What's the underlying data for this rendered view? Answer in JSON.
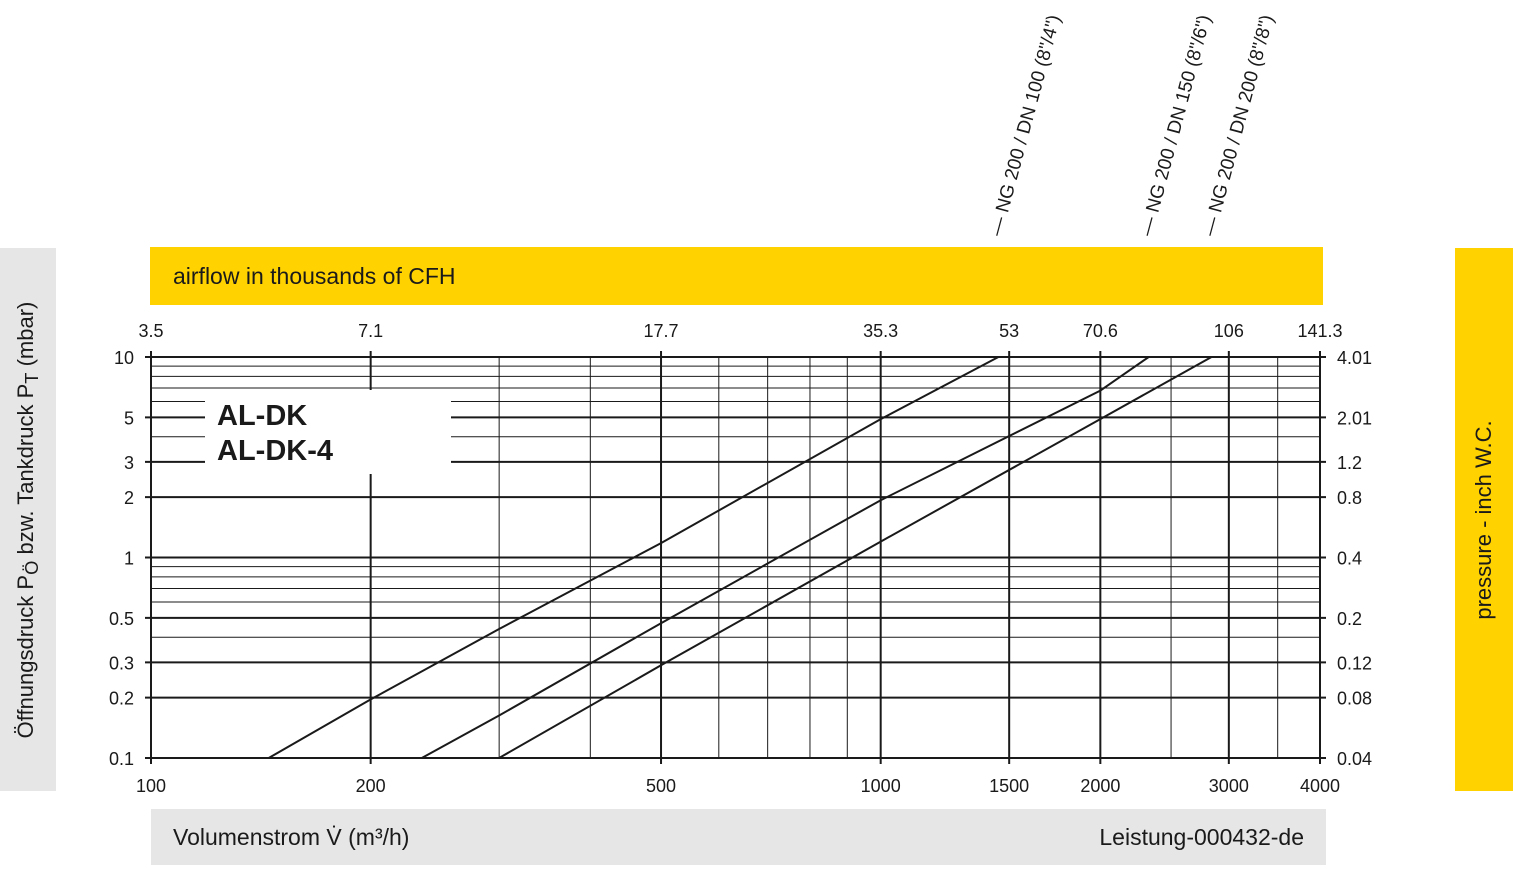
{
  "top_band": {
    "text": "airflow in thousands of CFH"
  },
  "bottom_band": {
    "xlabel": "Volumenstrom V̇ (m³/h)",
    "doc_id": "Leistung-000432-de"
  },
  "left_band": {
    "ylabel_main": "Öffnungsdruck P",
    "ylabel_sub1": "Ö",
    "ylabel_mid": " bzw. Tankdruck P",
    "ylabel_sub2": "T",
    "ylabel_end": " (mbar)"
  },
  "right_band": {
    "ylabel": "pressure  - inch W.C."
  },
  "colors": {
    "yellow": "#ffd200",
    "grey": "#e6e6e6",
    "ink": "#1a1a1a"
  },
  "chart_data": {
    "type": "line",
    "x_scale": "log",
    "y_scale": "log",
    "xlim": [
      100,
      4000
    ],
    "ylim": [
      0.1,
      10
    ],
    "x_ticks": [
      {
        "value": 100,
        "label": "100"
      },
      {
        "value": 200,
        "label": "200"
      },
      {
        "value": 500,
        "label": "500"
      },
      {
        "value": 1000,
        "label": "1000"
      },
      {
        "value": 1500,
        "label": "1500"
      },
      {
        "value": 2000,
        "label": "2000"
      },
      {
        "value": 3000,
        "label": "3000"
      },
      {
        "value": 4000,
        "label": "4000"
      }
    ],
    "x2_ticks": [
      {
        "value": 100,
        "label": "3.5"
      },
      {
        "value": 200,
        "label": "7.1"
      },
      {
        "value": 500,
        "label": "17.7"
      },
      {
        "value": 1000,
        "label": "35.3"
      },
      {
        "value": 1500,
        "label": "53"
      },
      {
        "value": 2000,
        "label": "70.6"
      },
      {
        "value": 3000,
        "label": "106"
      },
      {
        "value": 4000,
        "label": "141.3"
      }
    ],
    "y_ticks": [
      {
        "value": 0.1,
        "label": "0.1"
      },
      {
        "value": 0.2,
        "label": "0.2"
      },
      {
        "value": 0.3,
        "label": "0.3"
      },
      {
        "value": 0.5,
        "label": "0.5"
      },
      {
        "value": 1,
        "label": "1"
      },
      {
        "value": 2,
        "label": "2"
      },
      {
        "value": 3,
        "label": "3"
      },
      {
        "value": 5,
        "label": "5"
      },
      {
        "value": 10,
        "label": "10"
      }
    ],
    "y2_ticks": [
      {
        "value": 0.1,
        "label": "0.04"
      },
      {
        "value": 0.2,
        "label": "0.08"
      },
      {
        "value": 0.3,
        "label": "0.12"
      },
      {
        "value": 0.5,
        "label": "0.2"
      },
      {
        "value": 1,
        "label": "0.4"
      },
      {
        "value": 2,
        "label": "0.8"
      },
      {
        "value": 3,
        "label": "1.2"
      },
      {
        "value": 5,
        "label": "2.01"
      },
      {
        "value": 10,
        "label": "4.01"
      }
    ],
    "legend": [
      "AL-DK",
      "AL-DK-4"
    ],
    "series": [
      {
        "name": "NG 200 / DN 100 (8\"/4\")",
        "points": [
          [
            145,
            0.1
          ],
          [
            200,
            0.196
          ],
          [
            300,
            0.44
          ],
          [
            500,
            1.18
          ],
          [
            1000,
            4.9
          ],
          [
            1450,
            10
          ]
        ]
      },
      {
        "name": "NG 200 / DN 150 (8\"/6\")",
        "points": [
          [
            235,
            0.1
          ],
          [
            300,
            0.163
          ],
          [
            500,
            0.47
          ],
          [
            1000,
            1.93
          ],
          [
            2000,
            6.8
          ],
          [
            2330,
            10
          ]
        ]
      },
      {
        "name": "NG 200 / DN 200 (8\"/8\")",
        "points": [
          [
            300,
            0.1
          ],
          [
            500,
            0.29
          ],
          [
            1000,
            1.2
          ],
          [
            2000,
            4.9
          ],
          [
            2840,
            10
          ]
        ]
      }
    ]
  }
}
